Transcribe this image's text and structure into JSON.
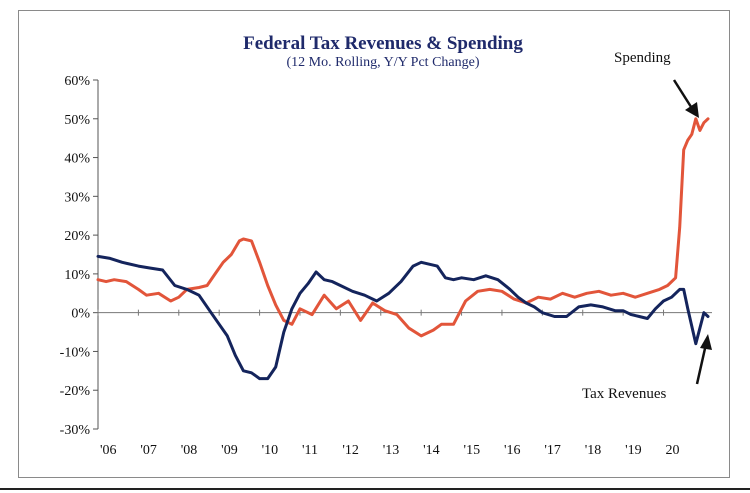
{
  "chart_data": {
    "type": "line",
    "title": "Federal Tax Revenues & Spending",
    "subtitle": "(12 Mo. Rolling, Y/Y Pct Change)",
    "xlabel": "",
    "ylabel": "",
    "ylim": [
      -30,
      60
    ],
    "xlim": [
      2006,
      2021.2
    ],
    "yticks": [
      "60%",
      "50%",
      "40%",
      "30%",
      "20%",
      "10%",
      "0%",
      "-10%",
      "-20%",
      "-30%"
    ],
    "ytick_values": [
      60,
      50,
      40,
      30,
      20,
      10,
      0,
      -10,
      -20,
      -30
    ],
    "xticks": [
      "'06",
      "'07",
      "'08",
      "'09",
      "'10",
      "'11",
      "'12",
      "'13",
      "'14",
      "'15",
      "'16",
      "'17",
      "'18",
      "'19",
      "20"
    ],
    "xtick_values": [
      2006,
      2007,
      2008,
      2009,
      2010,
      2011,
      2012,
      2013,
      2014,
      2015,
      2016,
      2017,
      2018,
      2019,
      2020
    ],
    "grid": false,
    "legend": "none",
    "annotations": [
      {
        "text": "Spending",
        "series": "Spending"
      },
      {
        "text": "Tax Revenues",
        "series": "Tax Revenues"
      }
    ],
    "series": [
      {
        "name": "Tax Revenues",
        "color": "#14245c",
        "x": [
          2006.0,
          2006.3,
          2006.6,
          2007.0,
          2007.3,
          2007.6,
          2007.9,
          2008.2,
          2008.5,
          2008.8,
          2009.0,
          2009.2,
          2009.4,
          2009.6,
          2009.8,
          2010.0,
          2010.2,
          2010.4,
          2010.6,
          2010.8,
          2011.0,
          2011.2,
          2011.4,
          2011.6,
          2011.8,
          2012.0,
          2012.3,
          2012.6,
          2012.9,
          2013.2,
          2013.5,
          2013.8,
          2014.0,
          2014.2,
          2014.4,
          2014.6,
          2014.8,
          2015.0,
          2015.3,
          2015.6,
          2015.9,
          2016.2,
          2016.4,
          2016.6,
          2016.8,
          2017.0,
          2017.3,
          2017.6,
          2017.9,
          2018.2,
          2018.5,
          2018.8,
          2019.0,
          2019.2,
          2019.4,
          2019.6,
          2019.8,
          2020.0,
          2020.2,
          2020.4,
          2020.5,
          2020.6,
          2020.8,
          2021.0,
          2021.1
        ],
        "y": [
          14.5,
          14,
          13,
          12,
          11.5,
          11,
          7,
          6,
          4.5,
          0,
          -3,
          -6,
          -11,
          -15,
          -15.5,
          -17,
          -17,
          -14,
          -5,
          1,
          5,
          7.5,
          10.5,
          8.5,
          8,
          7,
          5.5,
          4.5,
          3,
          5,
          8,
          12,
          13,
          12.5,
          12,
          9,
          8.5,
          9,
          8.5,
          9.5,
          8.5,
          6,
          4,
          2.5,
          1.5,
          0,
          -1,
          -1,
          1.5,
          2,
          1.5,
          0.5,
          0.5,
          -0.5,
          -1,
          -1.5,
          1,
          3,
          4,
          6,
          6,
          1,
          -8,
          0,
          -1
        ]
      },
      {
        "name": "Spending",
        "color": "#e2553a",
        "x": [
          2006.0,
          2006.2,
          2006.4,
          2006.7,
          2007.0,
          2007.2,
          2007.5,
          2007.8,
          2008.0,
          2008.2,
          2008.5,
          2008.7,
          2008.9,
          2009.1,
          2009.3,
          2009.5,
          2009.6,
          2009.8,
          2010.0,
          2010.2,
          2010.4,
          2010.6,
          2010.8,
          2011.0,
          2011.3,
          2011.6,
          2011.9,
          2012.2,
          2012.5,
          2012.8,
          2013.1,
          2013.4,
          2013.7,
          2014.0,
          2014.3,
          2014.5,
          2014.8,
          2015.1,
          2015.4,
          2015.7,
          2016.0,
          2016.3,
          2016.6,
          2016.9,
          2017.2,
          2017.5,
          2017.8,
          2018.1,
          2018.4,
          2018.7,
          2019.0,
          2019.3,
          2019.6,
          2019.9,
          2020.1,
          2020.3,
          2020.4,
          2020.5,
          2020.6,
          2020.7,
          2020.8,
          2020.9,
          2021.0,
          2021.1
        ],
        "y": [
          8.5,
          8,
          8.5,
          8,
          6,
          4.5,
          5,
          3,
          4,
          6,
          6.5,
          7,
          10,
          13,
          15,
          18.5,
          19,
          18.5,
          13,
          7,
          2,
          -2,
          -3,
          1,
          -0.5,
          4.5,
          1,
          3,
          -2,
          2.5,
          0.5,
          -0.5,
          -4,
          -6,
          -4.5,
          -3,
          -3,
          3,
          5.5,
          6,
          5.5,
          3.5,
          2.5,
          4,
          3.5,
          5,
          4,
          5,
          5.5,
          4.5,
          5,
          4,
          5,
          6,
          7,
          9,
          22,
          42,
          44.5,
          46,
          50,
          47,
          49,
          50
        ]
      }
    ]
  }
}
